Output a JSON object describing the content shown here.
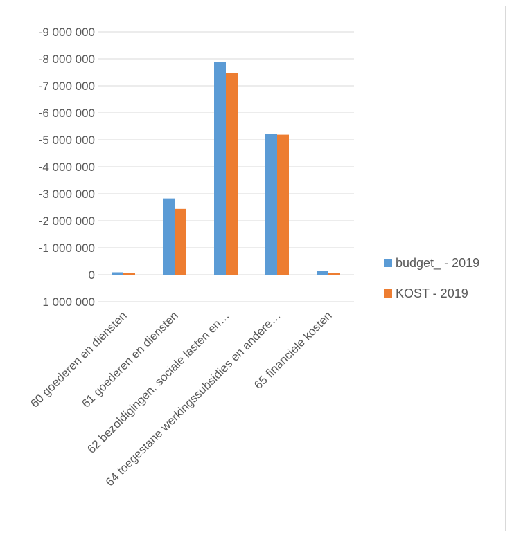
{
  "chart_data": {
    "type": "bar",
    "title": "",
    "xlabel": "",
    "ylabel": "",
    "categories": [
      "60 goederen en diensten",
      "61 goederen en diensten",
      "62 bezoldigingen, sociale lasten en…",
      "64 toegestane werkingssubsidies en andere…",
      "65 financiele kosten"
    ],
    "series": [
      {
        "name": "budget_ - 2019",
        "color": "#5B9BD5",
        "values": [
          -90000,
          -2830000,
          -7880000,
          -5210000,
          -130000
        ]
      },
      {
        "name": "KOST - 2019",
        "color": "#ED7D31",
        "values": [
          -75000,
          -2440000,
          -7480000,
          -5190000,
          -70000
        ]
      }
    ],
    "ylim": [
      1000000,
      -9000000
    ],
    "y_axis_reversed": true,
    "y_ticks": [
      -9000000,
      -8000000,
      -7000000,
      -6000000,
      -5000000,
      -4000000,
      -3000000,
      -2000000,
      -1000000,
      0,
      1000000
    ],
    "y_tick_labels": [
      "-9 000 000",
      "-8 000 000",
      "-7 000 000",
      "-6 000 000",
      "-5 000 000",
      "-4 000 000",
      "-3 000 000",
      "-2 000 000",
      "-1 000 000",
      "0",
      "1 000 000"
    ],
    "grid": true,
    "legend_position": "right",
    "gridline_color": "#d9d9d9"
  }
}
